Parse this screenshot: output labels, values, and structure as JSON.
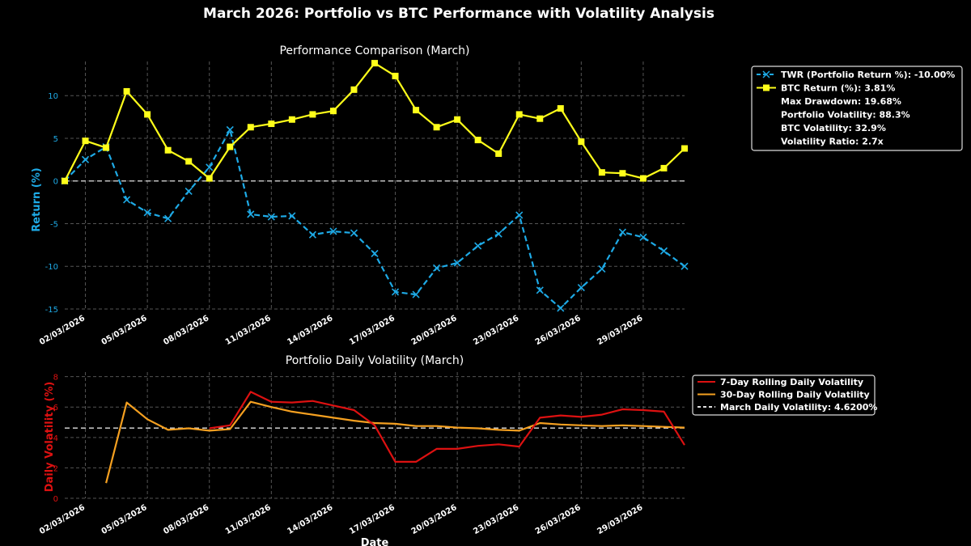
{
  "figure": {
    "title": "March 2026: Portfolio vs BTC Performance with Volatility Analysis"
  },
  "colors": {
    "background": "#000000",
    "portfolio": "#1EAAE6",
    "btc": "#FFFF1A",
    "vol7": "#DD1111",
    "vol30": "#F5A020",
    "reference": "#E0E0E0",
    "grid": "#555555",
    "returnAxis": "#1EAAE6",
    "volAxis": "#DD1111"
  },
  "chart_data": [
    {
      "type": "line",
      "title": "Performance Comparison (March)",
      "xlabel": "",
      "ylabel": "Return (%)",
      "x_domain": [
        1,
        31
      ],
      "ylim": [
        -15,
        14
      ],
      "yticks": [
        -15,
        -10,
        -5,
        0,
        5,
        10
      ],
      "xticks": [
        {
          "day": 2,
          "label": "02/03/2026"
        },
        {
          "day": 5,
          "label": "05/03/2026"
        },
        {
          "day": 8,
          "label": "08/03/2026"
        },
        {
          "day": 11,
          "label": "11/03/2026"
        },
        {
          "day": 14,
          "label": "14/03/2026"
        },
        {
          "day": 17,
          "label": "17/03/2026"
        },
        {
          "day": 20,
          "label": "20/03/2026"
        },
        {
          "day": 23,
          "label": "23/03/2026"
        },
        {
          "day": 26,
          "label": "26/03/2026"
        },
        {
          "day": 29,
          "label": "29/03/2026"
        }
      ],
      "grid": true,
      "legend_position": "outside-right-top",
      "reference_line": {
        "y": 0,
        "style": "dashed"
      },
      "x": [
        1,
        2,
        3,
        4,
        5,
        6,
        7,
        8,
        9,
        10,
        11,
        12,
        13,
        14,
        15,
        16,
        17,
        18,
        19,
        20,
        21,
        22,
        23,
        24,
        25,
        26,
        27,
        28,
        29,
        30,
        31
      ],
      "series": [
        {
          "name": "TWR (Portfolio Return %)",
          "style": "dashed",
          "marker": "x",
          "values": [
            0,
            2.5,
            4.0,
            -2.2,
            -3.7,
            -4.4,
            -1.2,
            1.6,
            6.0,
            -3.9,
            -4.2,
            -4.1,
            -6.3,
            -5.9,
            -6.1,
            -8.5,
            -13.0,
            -13.3,
            -10.2,
            -9.6,
            -7.6,
            -6.2,
            -4.0,
            -12.8,
            -14.9,
            -12.5,
            -10.3,
            -6.0,
            -6.6,
            -8.2,
            -10.0
          ]
        },
        {
          "name": "BTC Return (%)",
          "style": "solid",
          "marker": "square",
          "values": [
            0,
            4.7,
            3.9,
            10.5,
            7.8,
            3.6,
            2.3,
            0.3,
            4.0,
            6.3,
            6.7,
            7.2,
            7.8,
            8.2,
            10.7,
            13.8,
            12.3,
            8.3,
            6.3,
            7.2,
            4.8,
            3.2,
            7.8,
            7.3,
            8.5,
            4.6,
            1.0,
            0.9,
            0.3,
            1.5,
            3.81
          ]
        }
      ],
      "legend": [
        {
          "text": "TWR (Portfolio Return %): -10.00%",
          "key": "portfolio"
        },
        {
          "text": "BTC Return (%): 3.81%",
          "key": "btc"
        },
        {
          "text": "Max Drawdown: 19.68%",
          "key": "none"
        },
        {
          "text": "Portfolio Volatility: 88.3%",
          "key": "none"
        },
        {
          "text": "BTC Volatility: 32.9%",
          "key": "none"
        },
        {
          "text": "Volatility Ratio: 2.7x",
          "key": "none"
        }
      ]
    },
    {
      "type": "line",
      "title": "Portfolio Daily Volatility (March)",
      "xlabel": "Date",
      "ylabel": "Daily Volatility (%)",
      "x_domain": [
        1,
        31
      ],
      "ylim": [
        0,
        8.3
      ],
      "yticks": [
        0,
        2,
        4,
        6,
        8
      ],
      "xticks": [
        {
          "day": 2,
          "label": "02/03/2026"
        },
        {
          "day": 5,
          "label": "05/03/2026"
        },
        {
          "day": 8,
          "label": "08/03/2026"
        },
        {
          "day": 11,
          "label": "11/03/2026"
        },
        {
          "day": 14,
          "label": "14/03/2026"
        },
        {
          "day": 17,
          "label": "17/03/2026"
        },
        {
          "day": 20,
          "label": "20/03/2026"
        },
        {
          "day": 23,
          "label": "23/03/2026"
        },
        {
          "day": 26,
          "label": "26/03/2026"
        },
        {
          "day": 29,
          "label": "29/03/2026"
        }
      ],
      "grid": true,
      "legend_position": "outside-right-top",
      "reference_line": {
        "y": 4.62,
        "style": "dashed"
      },
      "series": [
        {
          "name": "7-Day Rolling Daily Volatility",
          "style": "solid",
          "x": [
            8,
            9,
            10,
            11,
            12,
            13,
            14,
            15,
            16,
            17,
            18,
            19,
            20,
            21,
            22,
            23,
            24,
            25,
            26,
            27,
            28,
            29,
            30,
            31
          ],
          "values": [
            4.6,
            4.8,
            7.0,
            6.35,
            6.3,
            6.4,
            6.1,
            5.8,
            4.8,
            2.4,
            2.4,
            3.25,
            3.25,
            3.45,
            3.55,
            3.4,
            5.3,
            5.45,
            5.35,
            5.5,
            5.85,
            5.8,
            5.7,
            3.5
          ]
        },
        {
          "name": "30-Day Rolling Daily Volatility",
          "style": "solid",
          "x": [
            3,
            4,
            5,
            6,
            7,
            8,
            9,
            10,
            11,
            12,
            13,
            14,
            15,
            16,
            17,
            18,
            19,
            20,
            21,
            22,
            23,
            24,
            25,
            26,
            27,
            28,
            29,
            30,
            31
          ],
          "values": [
            1.0,
            6.3,
            5.2,
            4.5,
            4.6,
            4.45,
            4.55,
            6.35,
            6.0,
            5.7,
            5.5,
            5.3,
            5.1,
            4.95,
            4.9,
            4.75,
            4.75,
            4.65,
            4.6,
            4.5,
            4.45,
            4.95,
            4.85,
            4.8,
            4.75,
            4.8,
            4.75,
            4.7,
            4.65
          ]
        }
      ],
      "legend": [
        {
          "text": "7-Day Rolling Daily Volatility",
          "key": "vol7"
        },
        {
          "text": "30-Day Rolling Daily Volatility",
          "key": "vol30"
        },
        {
          "text": "March Daily Volatility: 4.6200%",
          "key": "reference"
        }
      ]
    }
  ]
}
